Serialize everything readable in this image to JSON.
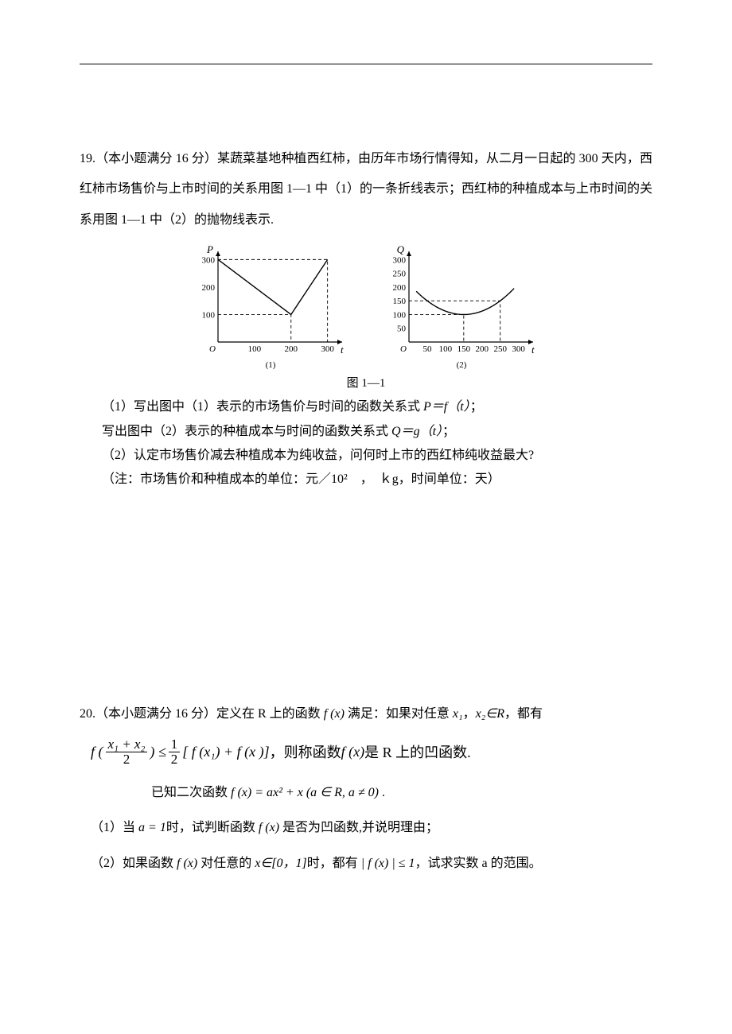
{
  "q19": {
    "heading": "19.（本小题满分 16 分）某蔬菜基地种植西红柿，由历年市场行情得知，从二月一日起的 300 天内，西红柿市场售价与上市时间的关系用图 1—1 中（1）的一条折线表示；西红柿的种植成本与上市时间的关系用图 1—1 中（2）的抛物线表示.",
    "fig_caption": "图 1—1",
    "sub1a": "（1）写出图中（1）表示的市场售价与时间的函数关系式 ",
    "sub1a_tail": "；",
    "sub1b": "写出图中（2）表示的种植成本与时间的函数关系式 ",
    "sub1b_tail": "；",
    "sub2": "（2）认定市场售价减去种植成本为纯收益，问何时上市的西红柿纯收益最大?",
    "note": "（注：市场售价和种植成本的单位：元／10²　，　ｋg，时间单位：天）",
    "eq_pf": "P＝f（t）",
    "eq_qg": "Q＝g（t）"
  },
  "chart1": {
    "axis_y": "P",
    "axis_x": "t",
    "origin": "O",
    "yticks": [
      "100",
      "200",
      "300"
    ],
    "xticks": [
      "100",
      "200",
      "300"
    ],
    "sub_label": "(1)",
    "polyline": [
      [
        0,
        300
      ],
      [
        200,
        100
      ],
      [
        300,
        300
      ]
    ],
    "dash_segments": [
      [
        [
          0,
          300
        ],
        [
          300,
          300
        ],
        [
          300,
          0
        ]
      ],
      [
        [
          0,
          100
        ],
        [
          200,
          100
        ],
        [
          200,
          0
        ]
      ]
    ],
    "xlim": [
      0,
      340
    ],
    "ylim": [
      0,
      330
    ],
    "stroke": "#000000",
    "bg": "#ffffff"
  },
  "chart2": {
    "axis_y": "Q",
    "axis_x": "t",
    "origin": "O",
    "yticks": [
      "50",
      "100",
      "150",
      "200",
      "250",
      "300"
    ],
    "xticks": [
      "50",
      "100",
      "150",
      "200",
      "250",
      "300"
    ],
    "sub_label": "(2)",
    "vertex": [
      150,
      100
    ],
    "parabola_a": 0.005,
    "x_range": [
      20,
      290
    ],
    "dash_segments": [
      [
        [
          0,
          100
        ],
        [
          150,
          100
        ],
        [
          150,
          0
        ]
      ],
      [
        [
          0,
          150
        ],
        [
          250,
          150
        ],
        [
          250,
          0
        ]
      ]
    ],
    "xlim": [
      0,
      340
    ],
    "ylim": [
      0,
      330
    ],
    "stroke": "#000000",
    "bg": "#ffffff"
  },
  "q20": {
    "heading_a": "20.（本小题满分 16 分）定义在 R 上的函数 ",
    "heading_b": " 满足：如果对任意 ",
    "heading_c": "，都有",
    "fx": "f (x)",
    "x1": "x₁",
    "x2": "x₂",
    "in_r": "∈R",
    "formula_tail_a": "，则称函数 ",
    "formula_tail_b": " 是 R 上的凹函数.",
    "given_a": "已知二次函数 ",
    "given_eq": "f (x) = ax² + x (a ∈ R, a ≠ 0)",
    "given_tail": " .",
    "s1_a": "（1）当 ",
    "s1_eq": "a = 1",
    "s1_b": "时，试判断函数 ",
    "s1_c": " 是否为凹函数,并说明理由；",
    "s2_a": "（2）如果函数 ",
    "s2_b": " 对任意的 ",
    "s2_dom": "x∈[0，1]",
    "s2_c": "时，都有 ",
    "s2_abs": "| f (x) | ≤ 1",
    "s2_d": "，试求实数 a 的范围。",
    "frac_arg_num": "x₁ + x₂",
    "frac_arg_den": "2",
    "half_num": "1",
    "half_den": "2",
    "f_open": "f (",
    "bracket_close": ") ≤ ",
    "sum_part": "[ f (x₁) + f (x  )]"
  }
}
